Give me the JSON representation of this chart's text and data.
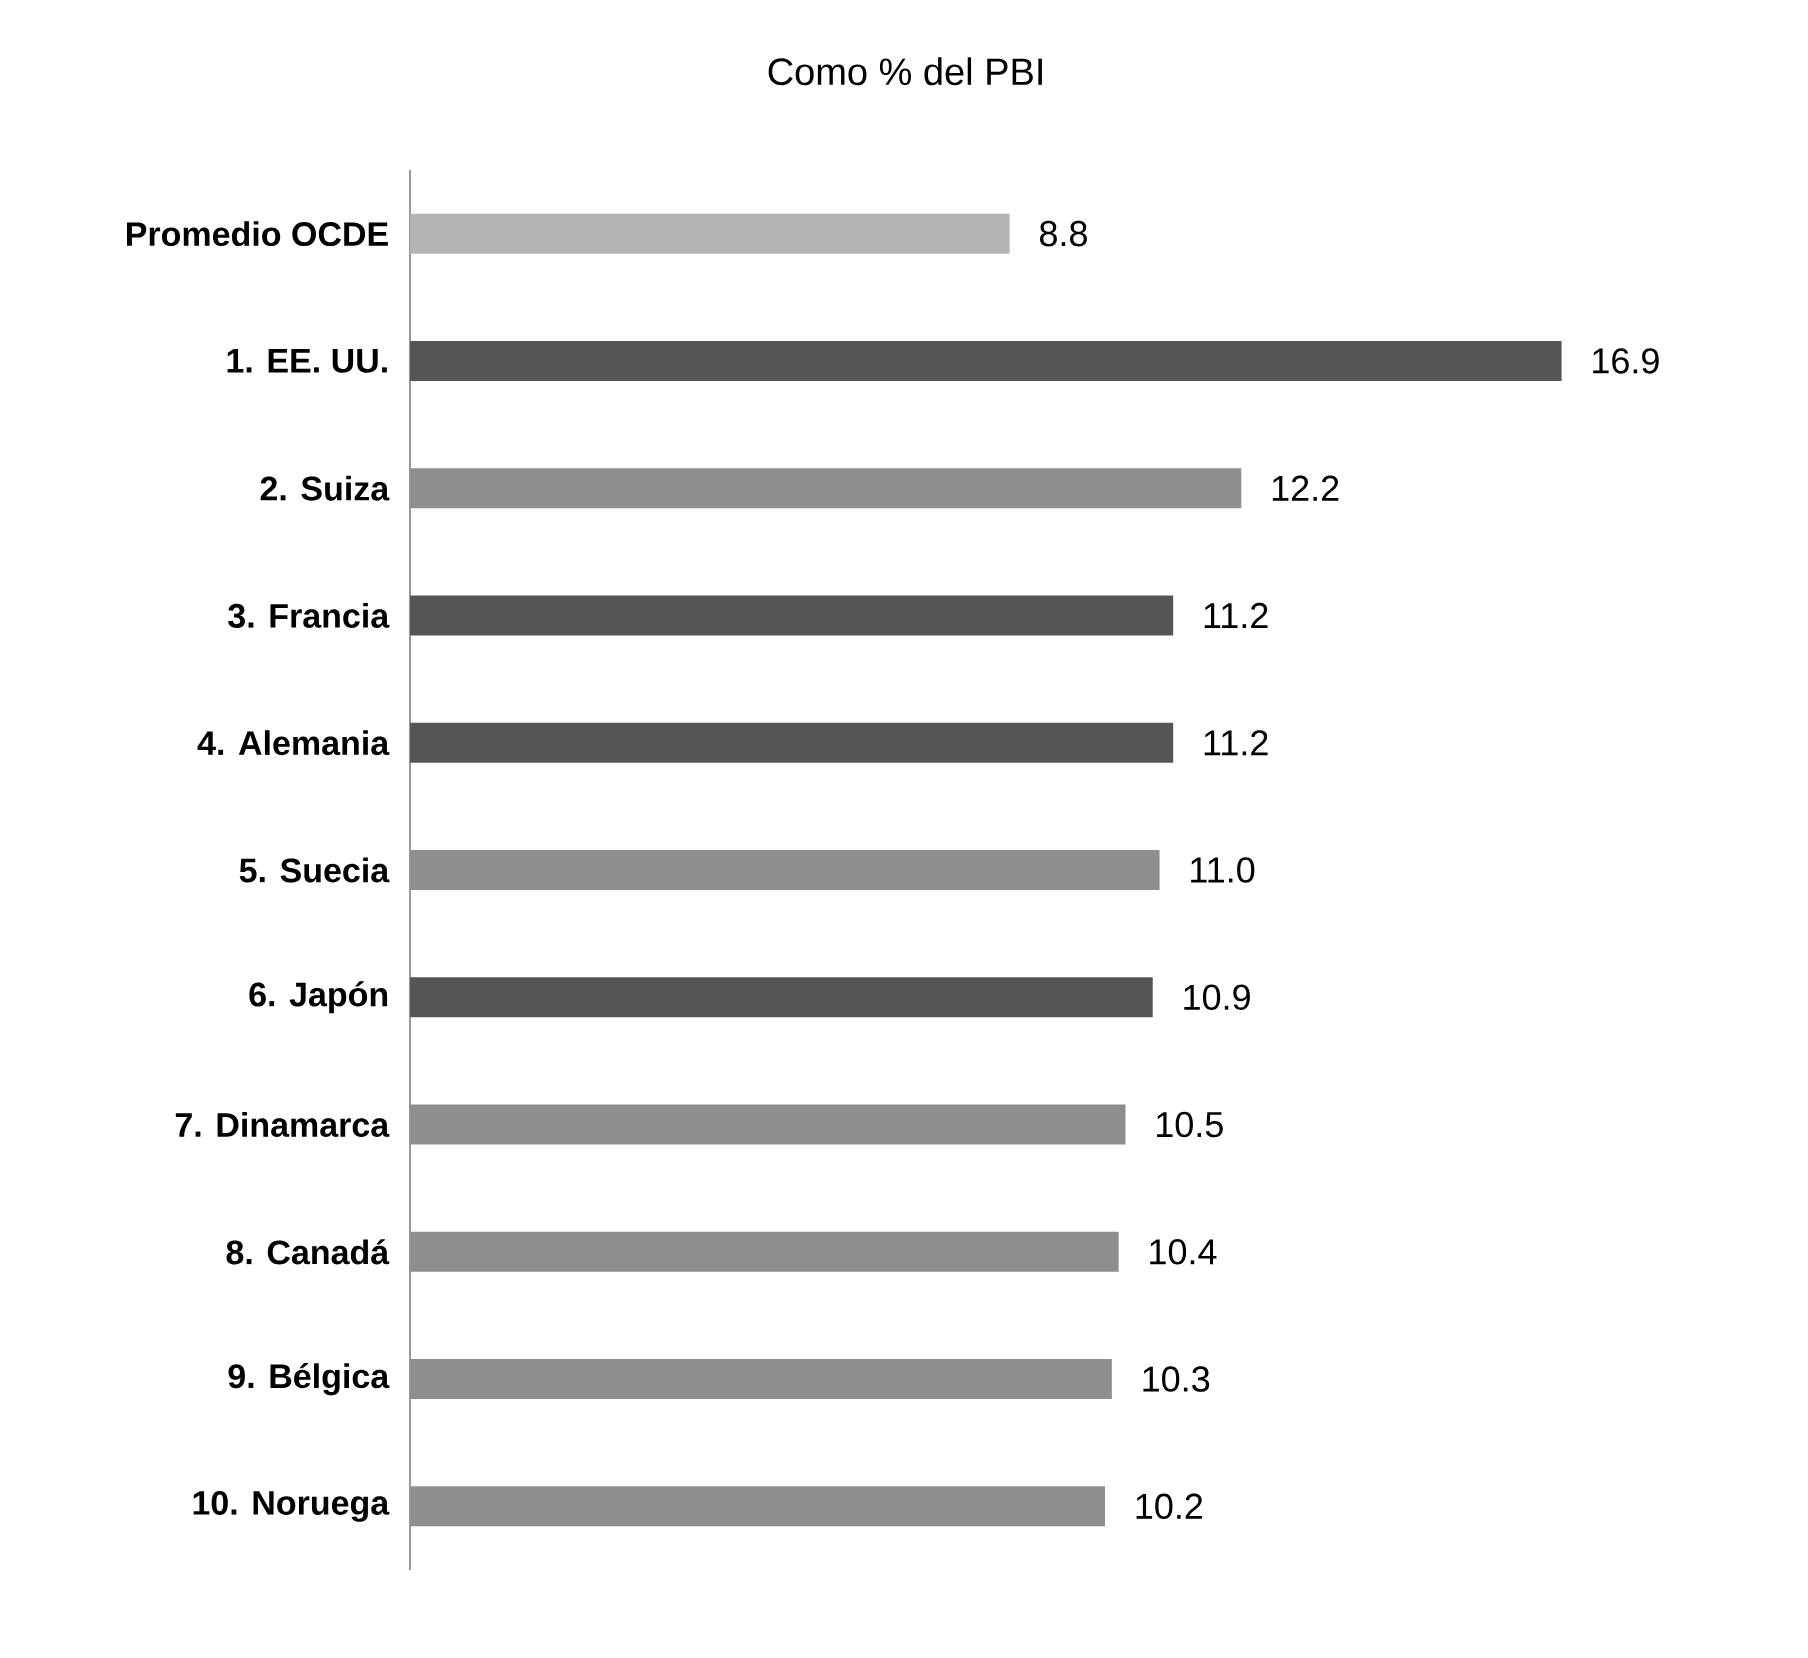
{
  "chart_data": {
    "type": "bar",
    "orientation": "horizontal",
    "title": "Como % del PBI",
    "categories": [
      "Promedio OCDE",
      "1. EE. UU.",
      "2. Suiza",
      "3. Francia",
      "4. Alemania",
      "5. Suecia",
      "6. Japón",
      "7. Dinamarca",
      "8. Canadá",
      "9. Bélgica",
      "10. Noruega"
    ],
    "values": [
      8.8,
      16.9,
      12.2,
      11.2,
      11.2,
      11.0,
      10.9,
      10.5,
      10.4,
      10.3,
      10.2
    ],
    "colors": [
      "#b4b4b4",
      "#555555",
      "#8e8e8e",
      "#555555",
      "#555555",
      "#8e8e8e",
      "#555555",
      "#8e8e8e",
      "#8e8e8e",
      "#8e8e8e",
      "#8e8e8e"
    ],
    "value_labels": [
      "8.8",
      "16.9",
      "12.2",
      "11.2",
      "11.2",
      "11.0",
      "10.9",
      "10.5",
      "10.4",
      "10.3",
      "10.2"
    ]
  }
}
